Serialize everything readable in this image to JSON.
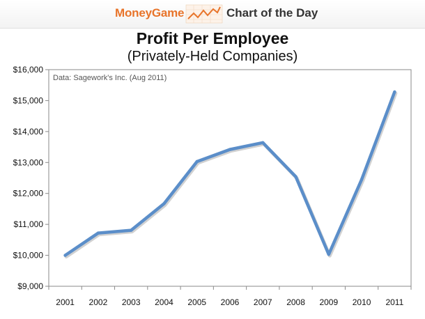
{
  "header": {
    "brand": "MoneyGame",
    "logo_icon": "rising-chart-icon",
    "section": "Chart of the Day",
    "brand_color": "#e8742a"
  },
  "chart_data": {
    "type": "line",
    "title": "Profit Per Employee",
    "subtitle": "(Privately-Held Companies)",
    "source": "Data: Sagework's Inc. (Aug 2011)",
    "xlabel": "",
    "ylabel": "",
    "categories": [
      "2001",
      "2002",
      "2003",
      "2004",
      "2005",
      "2006",
      "2007",
      "2008",
      "2009",
      "2010",
      "2011"
    ],
    "series": [
      {
        "values": [
          10000,
          10720,
          10810,
          11670,
          13030,
          13420,
          13640,
          12540,
          10030,
          12450,
          15280
        ],
        "color": "#5b8ec9"
      }
    ],
    "ylim": [
      9000,
      16000
    ],
    "yticks": [
      9000,
      10000,
      11000,
      12000,
      13000,
      14000,
      15000,
      16000
    ],
    "ytick_labels": [
      "$9,000",
      "$10,000",
      "$11,000",
      "$12,000",
      "$13,000",
      "$14,000",
      "$15,000",
      "$16,000"
    ],
    "grid": false,
    "legend": "none"
  }
}
